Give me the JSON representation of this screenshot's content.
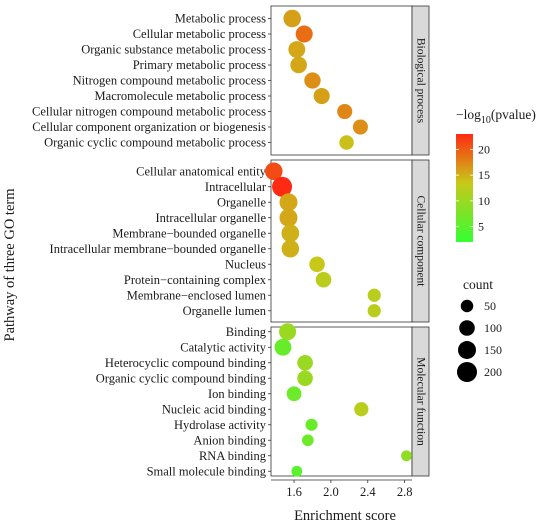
{
  "chart_data": {
    "type": "scatter",
    "xlabel": "Enrichment score",
    "ylabel": "Pathway of three GO term",
    "xlim": [
      1.35,
      2.88
    ],
    "x_ticks": [
      1.6,
      2.0,
      2.4,
      2.8
    ],
    "x_tick_labels": [
      "1.6",
      "2.0",
      "2.4",
      "2.8"
    ],
    "grid": false,
    "color_legend": {
      "title_prefix": "−log",
      "title_sub": "10",
      "title_suffix": "(pvalue)",
      "range": [
        2,
        23
      ],
      "ticks": [
        5,
        10,
        15,
        20
      ],
      "tick_labels": [
        "5",
        "10",
        "15",
        "20"
      ],
      "colors": [
        "#33ff33",
        "#c8c81a",
        "#ff2a12"
      ],
      "position": "right"
    },
    "size_legend": {
      "title": "count",
      "values": [
        50,
        100,
        150,
        200
      ],
      "labels": [
        "50",
        "100",
        "150",
        "200"
      ],
      "position": "right"
    },
    "panels": [
      {
        "facet": "Biological process",
        "points": [
          {
            "term": "Metabolic process",
            "x": 1.58,
            "count": 140,
            "pvalue": 16
          },
          {
            "term": "Cellular metabolic process",
            "x": 1.71,
            "count": 130,
            "pvalue": 19
          },
          {
            "term": "Organic substance metabolic process",
            "x": 1.63,
            "count": 125,
            "pvalue": 15.5
          },
          {
            "term": "Primary metabolic process",
            "x": 1.65,
            "count": 120,
            "pvalue": 15.5
          },
          {
            "term": "Nitrogen compound metabolic process",
            "x": 1.8,
            "count": 115,
            "pvalue": 17
          },
          {
            "term": "Macromolecule metabolic process",
            "x": 1.9,
            "count": 110,
            "pvalue": 16
          },
          {
            "term": "Cellular nitrogen compound metabolic process",
            "x": 2.15,
            "count": 90,
            "pvalue": 17.5
          },
          {
            "term": "Cellular component organization or biogenesis",
            "x": 2.32,
            "count": 90,
            "pvalue": 17
          },
          {
            "term": "Organic cyclic compound metabolic process",
            "x": 2.17,
            "count": 80,
            "pvalue": 14
          }
        ]
      },
      {
        "facet": "Cellular component",
        "points": [
          {
            "term": "Cellular anatomical entity",
            "x": 1.38,
            "count": 140,
            "pvalue": 21
          },
          {
            "term": "Intracellular",
            "x": 1.47,
            "count": 200,
            "pvalue": 23
          },
          {
            "term": "Organelle",
            "x": 1.54,
            "count": 150,
            "pvalue": 15.5
          },
          {
            "term": "Intracellular organelle",
            "x": 1.54,
            "count": 150,
            "pvalue": 15.5
          },
          {
            "term": "Membrane−bounded organelle",
            "x": 1.56,
            "count": 145,
            "pvalue": 15
          },
          {
            "term": "Intracellular membrane−bounded organelle",
            "x": 1.56,
            "count": 140,
            "pvalue": 15
          },
          {
            "term": "Nucleus",
            "x": 1.85,
            "count": 100,
            "pvalue": 13.5
          },
          {
            "term": "Protein−containing complex",
            "x": 1.92,
            "count": 100,
            "pvalue": 12.5
          },
          {
            "term": "Membrane−enclosed lumen",
            "x": 2.47,
            "count": 60,
            "pvalue": 12.5
          },
          {
            "term": "Organelle lumen",
            "x": 2.47,
            "count": 60,
            "pvalue": 12.5
          }
        ]
      },
      {
        "facet": "Molecular function",
        "points": [
          {
            "term": "Binding",
            "x": 1.53,
            "count": 130,
            "pvalue": 10
          },
          {
            "term": "Catalytic activity",
            "x": 1.48,
            "count": 125,
            "pvalue": 6
          },
          {
            "term": "Heterocyclic compound binding",
            "x": 1.72,
            "count": 100,
            "pvalue": 10
          },
          {
            "term": "Organic cyclic compound binding",
            "x": 1.72,
            "count": 100,
            "pvalue": 10
          },
          {
            "term": "Ion binding",
            "x": 1.6,
            "count": 85,
            "pvalue": 6.5
          },
          {
            "term": "Nucleic acid binding",
            "x": 2.33,
            "count": 75,
            "pvalue": 12.5
          },
          {
            "term": "Hydrolase activity",
            "x": 1.79,
            "count": 45,
            "pvalue": 6
          },
          {
            "term": "Anion binding",
            "x": 1.75,
            "count": 40,
            "pvalue": 6.5
          },
          {
            "term": "RNA binding",
            "x": 2.82,
            "count": 30,
            "pvalue": 9
          },
          {
            "term": "Small molecule binding",
            "x": 1.63,
            "count": 30,
            "pvalue": 5
          }
        ]
      }
    ]
  }
}
